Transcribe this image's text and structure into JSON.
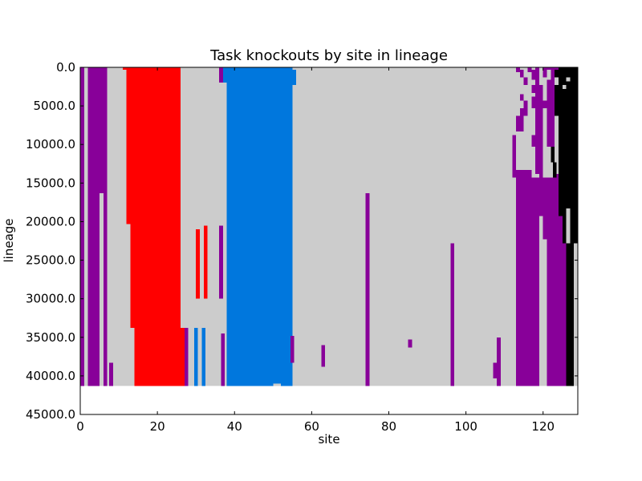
{
  "chart_data": {
    "type": "heatmap",
    "title": "Task knockouts by site in lineage",
    "xlabel": "site",
    "ylabel": "lineage",
    "xlim": [
      0,
      129
    ],
    "ylim": [
      45000,
      0
    ],
    "y_inverted": true,
    "data_extent_y": [
      0,
      41300
    ],
    "xticks": [
      0,
      20,
      40,
      60,
      80,
      100,
      120
    ],
    "xtick_labels": [
      "0",
      "20",
      "40",
      "60",
      "80",
      "100",
      "120"
    ],
    "yticks": [
      0,
      5000,
      10000,
      15000,
      20000,
      25000,
      30000,
      35000,
      40000,
      45000
    ],
    "ytick_labels": [
      "0.0",
      "5000.0",
      "10000.0",
      "15000.0",
      "20000.0",
      "25000.0",
      "30000.0",
      "35000.0",
      "40000.0",
      "45000.0"
    ],
    "background_color": "#cccccc",
    "category_colors": {
      "none": "#cccccc",
      "purple": "#880099",
      "red": "#ff0000",
      "blue": "#0077dd",
      "black": "#000000"
    },
    "cells": [
      {
        "x0": 0,
        "x1": 1,
        "y0": 0,
        "y1": 41300,
        "category": "purple"
      },
      {
        "x0": 2,
        "x1": 5,
        "y0": 0,
        "y1": 41300,
        "category": "purple"
      },
      {
        "x0": 5,
        "x1": 6,
        "y0": 0,
        "y1": 16300,
        "category": "purple"
      },
      {
        "x0": 6,
        "x1": 7,
        "y0": 0,
        "y1": 41300,
        "category": "purple"
      },
      {
        "x0": 7.5,
        "x1": 8.5,
        "y0": 38300,
        "y1": 41300,
        "category": "purple"
      },
      {
        "x0": 11,
        "x1": 12,
        "y0": 0,
        "y1": 300,
        "category": "red"
      },
      {
        "x0": 12,
        "x1": 13,
        "y0": 0,
        "y1": 20300,
        "category": "red"
      },
      {
        "x0": 13,
        "x1": 14,
        "y0": 0,
        "y1": 33800,
        "category": "red"
      },
      {
        "x0": 14,
        "x1": 26,
        "y0": 0,
        "y1": 41300,
        "category": "red"
      },
      {
        "x0": 26,
        "x1": 27,
        "y0": 33800,
        "y1": 41300,
        "category": "red"
      },
      {
        "x0": 27,
        "x1": 28,
        "y0": 33800,
        "y1": 41300,
        "category": "purple"
      },
      {
        "x0": 30,
        "x1": 31,
        "y0": 21000,
        "y1": 30000,
        "category": "red"
      },
      {
        "x0": 32,
        "x1": 33,
        "y0": 20500,
        "y1": 30000,
        "category": "red"
      },
      {
        "x0": 29.5,
        "x1": 30.5,
        "y0": 33800,
        "y1": 41300,
        "category": "blue"
      },
      {
        "x0": 31.5,
        "x1": 32.5,
        "y0": 33800,
        "y1": 41300,
        "category": "blue"
      },
      {
        "x0": 36,
        "x1": 37,
        "y0": 0,
        "y1": 2000,
        "category": "purple"
      },
      {
        "x0": 36,
        "x1": 37,
        "y0": 20500,
        "y1": 30000,
        "category": "purple"
      },
      {
        "x0": 36.5,
        "x1": 37.5,
        "y0": 34500,
        "y1": 41300,
        "category": "purple"
      },
      {
        "x0": 37,
        "x1": 38,
        "y0": 0,
        "y1": 2000,
        "category": "blue"
      },
      {
        "x0": 38,
        "x1": 55,
        "y0": 0,
        "y1": 41300,
        "category": "blue"
      },
      {
        "x0": 55,
        "x1": 56,
        "y0": 300,
        "y1": 2300,
        "category": "blue"
      },
      {
        "x0": 50,
        "x1": 52,
        "y0": 41000,
        "y1": 41300,
        "category": "none"
      },
      {
        "x0": 54.5,
        "x1": 55.5,
        "y0": 34800,
        "y1": 38300,
        "category": "purple"
      },
      {
        "x0": 62.5,
        "x1": 63.5,
        "y0": 36000,
        "y1": 38800,
        "category": "purple"
      },
      {
        "x0": 74,
        "x1": 75,
        "y0": 16300,
        "y1": 41300,
        "category": "purple"
      },
      {
        "x0": 85,
        "x1": 86,
        "y0": 35300,
        "y1": 36300,
        "category": "purple"
      },
      {
        "x0": 96,
        "x1": 97,
        "y0": 22800,
        "y1": 41300,
        "category": "purple"
      },
      {
        "x0": 107,
        "x1": 108,
        "y0": 38300,
        "y1": 40300,
        "category": "purple"
      },
      {
        "x0": 108,
        "x1": 109,
        "y0": 35000,
        "y1": 41300,
        "category": "purple"
      },
      {
        "x0": 113,
        "x1": 114,
        "y0": 0,
        "y1": 600,
        "category": "purple"
      },
      {
        "x0": 114,
        "x1": 115,
        "y0": 300,
        "y1": 1300,
        "category": "purple"
      },
      {
        "x0": 115,
        "x1": 116,
        "y0": 1300,
        "y1": 2300,
        "category": "purple"
      },
      {
        "x0": 114,
        "x1": 115,
        "y0": 3500,
        "y1": 4300,
        "category": "purple"
      },
      {
        "x0": 115,
        "x1": 116,
        "y0": 4300,
        "y1": 5300,
        "category": "purple"
      },
      {
        "x0": 114,
        "x1": 116,
        "y0": 5300,
        "y1": 6300,
        "category": "purple"
      },
      {
        "x0": 113,
        "x1": 115,
        "y0": 6300,
        "y1": 8300,
        "category": "purple"
      },
      {
        "x0": 112,
        "x1": 113,
        "y0": 8800,
        "y1": 14300,
        "category": "purple"
      },
      {
        "x0": 113,
        "x1": 117,
        "y0": 13300,
        "y1": 41300,
        "category": "purple"
      },
      {
        "x0": 117,
        "x1": 119,
        "y0": 14300,
        "y1": 41300,
        "category": "purple"
      },
      {
        "x0": 116,
        "x1": 117,
        "y0": 0,
        "y1": 600,
        "category": "purple"
      },
      {
        "x0": 117,
        "x1": 118,
        "y0": 300,
        "y1": 1600,
        "category": "purple"
      },
      {
        "x0": 118,
        "x1": 119,
        "y0": 0,
        "y1": 2300,
        "category": "purple"
      },
      {
        "x0": 117,
        "x1": 118,
        "y0": 2300,
        "y1": 3300,
        "category": "purple"
      },
      {
        "x0": 117,
        "x1": 118,
        "y0": 3800,
        "y1": 5300,
        "category": "purple"
      },
      {
        "x0": 118,
        "x1": 120,
        "y0": 2300,
        "y1": 8800,
        "category": "purple"
      },
      {
        "x0": 117,
        "x1": 120,
        "y0": 8800,
        "y1": 10300,
        "category": "purple"
      },
      {
        "x0": 118,
        "x1": 120,
        "y0": 10300,
        "y1": 13800,
        "category": "purple"
      },
      {
        "x0": 120,
        "x1": 121,
        "y0": 0,
        "y1": 1300,
        "category": "purple"
      },
      {
        "x0": 120,
        "x1": 121,
        "y0": 4300,
        "y1": 5300,
        "category": "purple"
      },
      {
        "x0": 121,
        "x1": 122,
        "y0": 0,
        "y1": 300,
        "category": "purple"
      },
      {
        "x0": 119,
        "x1": 120,
        "y0": 13800,
        "y1": 19300,
        "category": "purple"
      },
      {
        "x0": 120,
        "x1": 123,
        "y0": 14300,
        "y1": 22300,
        "category": "purple"
      },
      {
        "x0": 121,
        "x1": 122,
        "y0": 1600,
        "y1": 10300,
        "category": "purple"
      },
      {
        "x0": 122,
        "x1": 123,
        "y0": 0,
        "y1": 10300,
        "category": "purple"
      },
      {
        "x0": 123,
        "x1": 124,
        "y0": 0,
        "y1": 300,
        "category": "purple"
      },
      {
        "x0": 121,
        "x1": 123,
        "y0": 22300,
        "y1": 41300,
        "category": "purple"
      },
      {
        "x0": 123,
        "x1": 124,
        "y0": 13800,
        "y1": 41300,
        "category": "purple"
      },
      {
        "x0": 124,
        "x1": 125,
        "y0": 19300,
        "y1": 41300,
        "category": "purple"
      },
      {
        "x0": 125,
        "x1": 126,
        "y0": 22800,
        "y1": 41300,
        "category": "purple"
      },
      {
        "x0": 122,
        "x1": 123,
        "y0": 10300,
        "y1": 12300,
        "category": "black"
      },
      {
        "x0": 122.5,
        "x1": 123.5,
        "y0": 12300,
        "y1": 14300,
        "category": "black"
      },
      {
        "x0": 123,
        "x1": 124,
        "y0": 300,
        "y1": 1300,
        "category": "black"
      },
      {
        "x0": 123,
        "x1": 124,
        "y0": 2300,
        "y1": 6300,
        "category": "black"
      },
      {
        "x0": 124,
        "x1": 125,
        "y0": 0,
        "y1": 19300,
        "category": "black"
      },
      {
        "x0": 125,
        "x1": 126,
        "y0": 0,
        "y1": 2300,
        "category": "black"
      },
      {
        "x0": 125,
        "x1": 126,
        "y0": 2800,
        "y1": 22800,
        "category": "black"
      },
      {
        "x0": 126,
        "x1": 127,
        "y0": 0,
        "y1": 1300,
        "category": "black"
      },
      {
        "x0": 126,
        "x1": 127,
        "y0": 1800,
        "y1": 18300,
        "category": "black"
      },
      {
        "x0": 127,
        "x1": 128,
        "y0": 0,
        "y1": 41300,
        "category": "black"
      },
      {
        "x0": 128,
        "x1": 129,
        "y0": 0,
        "y1": 22800,
        "category": "black"
      },
      {
        "x0": 126,
        "x1": 127,
        "y0": 22800,
        "y1": 41300,
        "category": "black"
      }
    ]
  }
}
